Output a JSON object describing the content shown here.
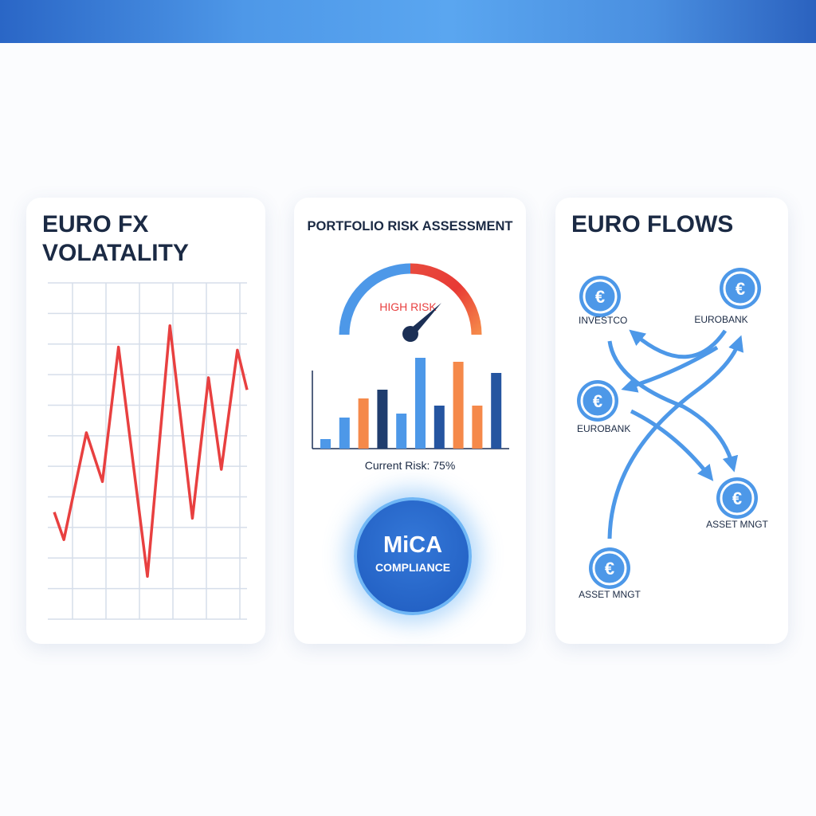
{
  "colors": {
    "accent": "#4a90e2",
    "red": "#e84040",
    "orange": "#f5894a",
    "navy": "#1f3d6e",
    "darkblue": "#2555a0",
    "blue": "#4d98e8"
  },
  "volatility": {
    "title_line1": "EURO FX",
    "title_line2": "VOLATALITY"
  },
  "risk": {
    "title": "PORTFOLIO RISK ASSESSMENT",
    "gauge_label": "HIGH RISK",
    "current_risk": "Current Risk: 75%",
    "gauge_value_percent": 75,
    "mica_line1": "MiCA",
    "mica_line2": "COMPLIANCE"
  },
  "flows": {
    "title": "EURO FLOWS",
    "icon": "euro-coin-icon",
    "nodes": [
      {
        "label": "INVESTCO"
      },
      {
        "label": "EUROBANK"
      },
      {
        "label": "EUROBANK"
      },
      {
        "label": "ASSET MNGT"
      },
      {
        "label": "ASSET MNGT"
      }
    ]
  },
  "chart_data": [
    {
      "type": "line",
      "title": "EURO FX VOLATALITY",
      "grid": true,
      "color": "#e84040",
      "x": [
        0.2,
        0.5,
        1.2,
        1.7,
        2.2,
        3.1,
        3.8,
        4.5,
        5.0,
        5.4,
        5.9,
        6.2
      ],
      "y": [
        3.5,
        2.6,
        6.1,
        4.5,
        8.9,
        1.4,
        9.6,
        3.3,
        7.9,
        4.9,
        8.8,
        7.5
      ],
      "xlim": [
        0,
        6.2
      ],
      "ylim": [
        0,
        11
      ]
    },
    {
      "type": "bar",
      "grid": false,
      "values": [
        12,
        39,
        63,
        74,
        44,
        114,
        54,
        109,
        54,
        95
      ],
      "colors": [
        "#4d98e8",
        "#4d98e8",
        "#f5894a",
        "#1f3d6e",
        "#4d98e8",
        "#4d98e8",
        "#2555a0",
        "#f5894a",
        "#f5894a",
        "#2555a0"
      ],
      "ylim": [
        0,
        120
      ]
    }
  ]
}
